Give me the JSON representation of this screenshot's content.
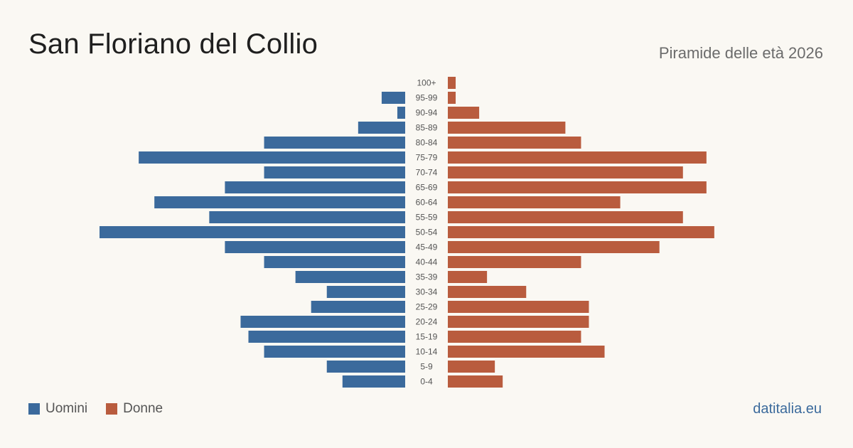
{
  "header": {
    "title": "San Floriano del Collio",
    "subtitle": "Piramide delle età 2026"
  },
  "legend": {
    "men_label": "Uomini",
    "women_label": "Donne"
  },
  "source": "datitalia.eu",
  "colors": {
    "men": "#3b6a9c",
    "women": "#b95c3e",
    "background": "#faf8f3"
  },
  "chart_data": {
    "type": "bar",
    "orientation": "horizontal-pyramid",
    "categories": [
      "100+",
      "95-99",
      "90-94",
      "85-89",
      "80-84",
      "75-79",
      "70-74",
      "65-69",
      "60-64",
      "55-59",
      "50-54",
      "45-49",
      "40-44",
      "35-39",
      "30-34",
      "25-29",
      "20-24",
      "15-19",
      "10-14",
      "5-9",
      "0-4"
    ],
    "series": [
      {
        "name": "Uomini",
        "values": [
          0,
          3,
          1,
          6,
          18,
          34,
          18,
          23,
          32,
          25,
          39,
          23,
          18,
          14,
          10,
          12,
          21,
          20,
          18,
          10,
          8
        ]
      },
      {
        "name": "Donne",
        "values": [
          1,
          1,
          4,
          15,
          17,
          33,
          30,
          33,
          22,
          30,
          34,
          27,
          17,
          5,
          10,
          18,
          18,
          17,
          20,
          6,
          7
        ]
      }
    ],
    "xlim": [
      0,
      39
    ],
    "legend_position": "bottom-left",
    "grid": false
  }
}
